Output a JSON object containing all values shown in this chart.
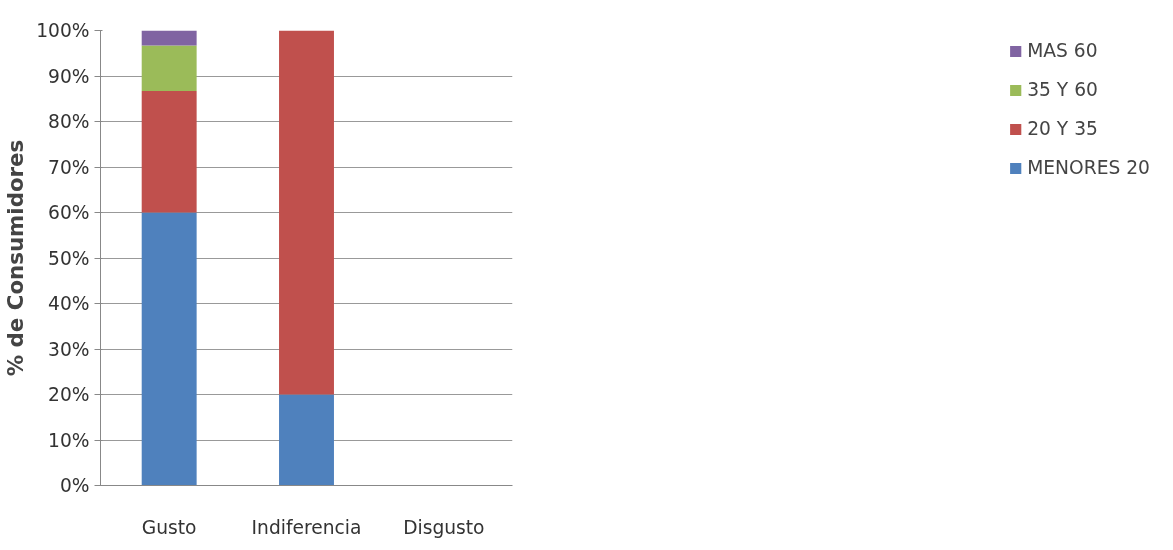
{
  "chart_data": {
    "type": "bar",
    "stacked": true,
    "ylabel": "% de Consumidores",
    "categories": [
      "Gusto",
      "Indiferencia",
      "Disgusto"
    ],
    "series": [
      {
        "name": "MENORES 20",
        "color": "#4f81bd",
        "values": [
          60,
          20,
          0
        ]
      },
      {
        "name": "20 Y 35",
        "color": "#c0504d",
        "values": [
          26.7,
          80,
          0
        ]
      },
      {
        "name": "35 Y 60",
        "color": "#9bbb59",
        "values": [
          10,
          0,
          0
        ]
      },
      {
        "name": "MAS 60",
        "color": "#8064a2",
        "values": [
          3.3,
          0,
          0
        ]
      }
    ],
    "ylim": [
      0,
      100
    ],
    "yticks": [
      {
        "value": 0,
        "label": "0%"
      },
      {
        "value": 10,
        "label": "10%"
      },
      {
        "value": 20,
        "label": "20%"
      },
      {
        "value": 30,
        "label": "30%"
      },
      {
        "value": 40,
        "label": "40%"
      },
      {
        "value": 50,
        "label": "50%"
      },
      {
        "value": 60,
        "label": "60%"
      },
      {
        "value": 70,
        "label": "70%"
      },
      {
        "value": 80,
        "label": "80%"
      },
      {
        "value": 90,
        "label": "90%"
      },
      {
        "value": 100,
        "label": "100%"
      }
    ],
    "grid": "y",
    "legend": "right"
  }
}
